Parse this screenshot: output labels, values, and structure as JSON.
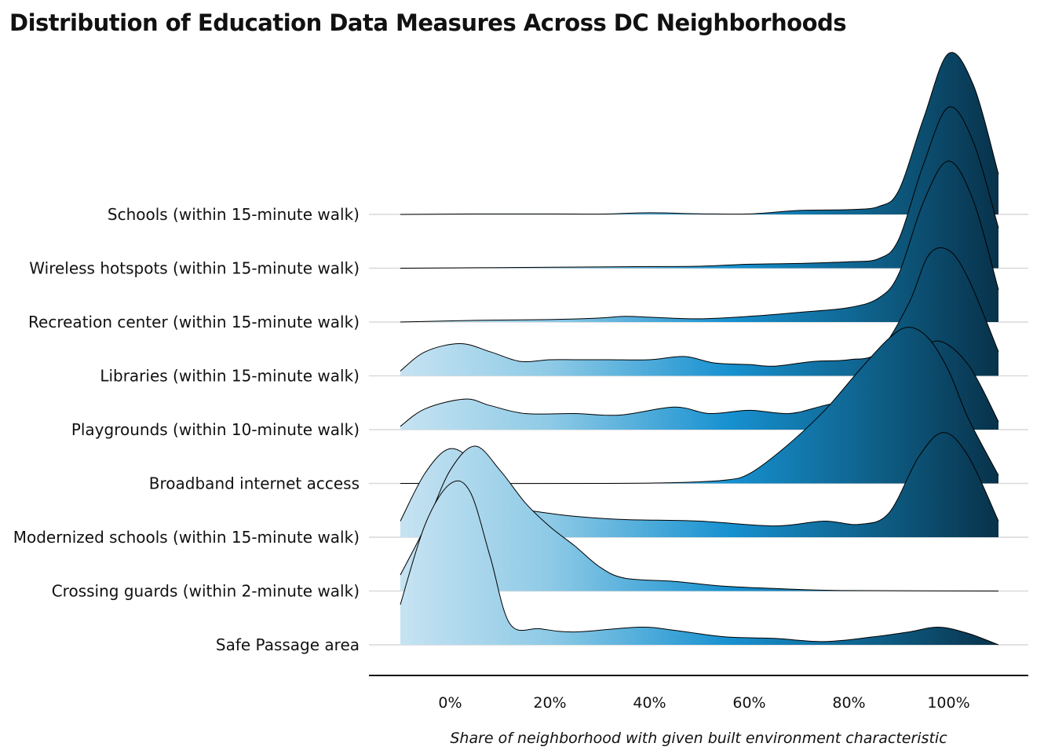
{
  "chart_data": {
    "type": "ridgeline",
    "title": "Distribution of Education Data Measures Across DC Neighborhoods",
    "xlabel": "Share of neighborhood with given built environment characteristic",
    "ylabel": "",
    "x_range": [
      -10,
      110
    ],
    "x_ticks": [
      0,
      20,
      40,
      60,
      80,
      100
    ],
    "x_tick_labels": [
      "0%",
      "20%",
      "40%",
      "60%",
      "80%",
      "100%"
    ],
    "grid": "horizontal baselines only",
    "fill_gradient": [
      "#c6e3f2",
      "#8ecae6",
      "#1791d0",
      "#0e5e86",
      "#08324a"
    ],
    "series": [
      {
        "name": "Schools (within 15-minute walk)",
        "density": [
          [
            -10,
            0
          ],
          [
            5,
            0.003
          ],
          [
            20,
            0.003
          ],
          [
            30,
            0.002
          ],
          [
            40,
            0.01
          ],
          [
            50,
            0.004
          ],
          [
            60,
            0.003
          ],
          [
            70,
            0.025
          ],
          [
            80,
            0.03
          ],
          [
            86,
            0.05
          ],
          [
            90,
            0.15
          ],
          [
            95,
            0.6
          ],
          [
            100,
            1.0
          ],
          [
            105,
            0.8
          ],
          [
            110,
            0.25
          ]
        ]
      },
      {
        "name": "Wireless hotspots (within 15-minute walk)",
        "density": [
          [
            -10,
            0
          ],
          [
            5,
            0.003
          ],
          [
            20,
            0.006
          ],
          [
            40,
            0.01
          ],
          [
            50,
            0.012
          ],
          [
            60,
            0.025
          ],
          [
            70,
            0.03
          ],
          [
            80,
            0.04
          ],
          [
            86,
            0.06
          ],
          [
            90,
            0.18
          ],
          [
            95,
            0.65
          ],
          [
            100,
            1.0
          ],
          [
            105,
            0.78
          ],
          [
            110,
            0.25
          ]
        ]
      },
      {
        "name": "Recreation center (within 15-minute walk)",
        "density": [
          [
            -10,
            0
          ],
          [
            5,
            0.01
          ],
          [
            20,
            0.015
          ],
          [
            30,
            0.025
          ],
          [
            35,
            0.035
          ],
          [
            40,
            0.03
          ],
          [
            50,
            0.02
          ],
          [
            60,
            0.035
          ],
          [
            70,
            0.06
          ],
          [
            80,
            0.09
          ],
          [
            86,
            0.15
          ],
          [
            90,
            0.3
          ],
          [
            95,
            0.75
          ],
          [
            100,
            1.0
          ],
          [
            105,
            0.75
          ],
          [
            110,
            0.2
          ]
        ]
      },
      {
        "name": "Libraries (within 15-minute walk)",
        "density": [
          [
            -10,
            0.03
          ],
          [
            -5,
            0.15
          ],
          [
            2,
            0.2
          ],
          [
            8,
            0.15
          ],
          [
            14,
            0.09
          ],
          [
            20,
            0.1
          ],
          [
            25,
            0.1
          ],
          [
            32,
            0.1
          ],
          [
            40,
            0.1
          ],
          [
            47,
            0.12
          ],
          [
            53,
            0.08
          ],
          [
            60,
            0.07
          ],
          [
            65,
            0.06
          ],
          [
            73,
            0.09
          ],
          [
            80,
            0.1
          ],
          [
            86,
            0.15
          ],
          [
            92,
            0.45
          ],
          [
            96,
            0.75
          ],
          [
            100,
            0.78
          ],
          [
            104,
            0.6
          ],
          [
            110,
            0.15
          ]
        ]
      },
      {
        "name": "Playgrounds (within 10-minute walk)",
        "density": [
          [
            -10,
            0.02
          ],
          [
            -5,
            0.13
          ],
          [
            3,
            0.19
          ],
          [
            8,
            0.15
          ],
          [
            15,
            0.1
          ],
          [
            25,
            0.1
          ],
          [
            34,
            0.09
          ],
          [
            45,
            0.14
          ],
          [
            52,
            0.1
          ],
          [
            60,
            0.12
          ],
          [
            68,
            0.1
          ],
          [
            75,
            0.15
          ],
          [
            82,
            0.2
          ],
          [
            88,
            0.3
          ],
          [
            93,
            0.45
          ],
          [
            98,
            0.55
          ],
          [
            104,
            0.4
          ],
          [
            110,
            0.05
          ]
        ]
      },
      {
        "name": "Broadband internet access",
        "density": [
          [
            -10,
            0
          ],
          [
            30,
            0
          ],
          [
            45,
            0.005
          ],
          [
            55,
            0.02
          ],
          [
            60,
            0.06
          ],
          [
            67,
            0.22
          ],
          [
            75,
            0.45
          ],
          [
            82,
            0.7
          ],
          [
            88,
            0.9
          ],
          [
            92,
            0.97
          ],
          [
            96,
            0.9
          ],
          [
            100,
            0.7
          ],
          [
            104,
            0.4
          ],
          [
            110,
            0.05
          ]
        ]
      },
      {
        "name": "Modernized schools (within 15-minute walk)",
        "density": [
          [
            -10,
            0.1
          ],
          [
            -5,
            0.4
          ],
          [
            0,
            0.55
          ],
          [
            5,
            0.45
          ],
          [
            10,
            0.2
          ],
          [
            15,
            0.17
          ],
          [
            25,
            0.13
          ],
          [
            35,
            0.11
          ],
          [
            50,
            0.1
          ],
          [
            65,
            0.07
          ],
          [
            75,
            0.1
          ],
          [
            82,
            0.08
          ],
          [
            88,
            0.15
          ],
          [
            94,
            0.5
          ],
          [
            99,
            0.65
          ],
          [
            104,
            0.5
          ],
          [
            110,
            0.1
          ]
        ]
      },
      {
        "name": "Crossing guards (within 2-minute walk)",
        "density": [
          [
            -10,
            0.1
          ],
          [
            -5,
            0.4
          ],
          [
            0,
            0.75
          ],
          [
            5,
            0.9
          ],
          [
            10,
            0.75
          ],
          [
            15,
            0.55
          ],
          [
            20,
            0.4
          ],
          [
            25,
            0.28
          ],
          [
            30,
            0.15
          ],
          [
            35,
            0.08
          ],
          [
            45,
            0.06
          ],
          [
            55,
            0.03
          ],
          [
            70,
            0.01
          ],
          [
            80,
            0.003
          ],
          [
            110,
            0
          ]
        ]
      },
      {
        "name": "Safe Passage area",
        "density": [
          [
            -10,
            0.25
          ],
          [
            -5,
            0.75
          ],
          [
            0,
            1.0
          ],
          [
            4,
            0.95
          ],
          [
            8,
            0.55
          ],
          [
            12,
            0.13
          ],
          [
            18,
            0.1
          ],
          [
            25,
            0.08
          ],
          [
            38,
            0.11
          ],
          [
            45,
            0.09
          ],
          [
            55,
            0.05
          ],
          [
            65,
            0.04
          ],
          [
            75,
            0.02
          ],
          [
            85,
            0.05
          ],
          [
            92,
            0.08
          ],
          [
            98,
            0.11
          ],
          [
            104,
            0.07
          ],
          [
            110,
            0
          ]
        ]
      }
    ]
  }
}
